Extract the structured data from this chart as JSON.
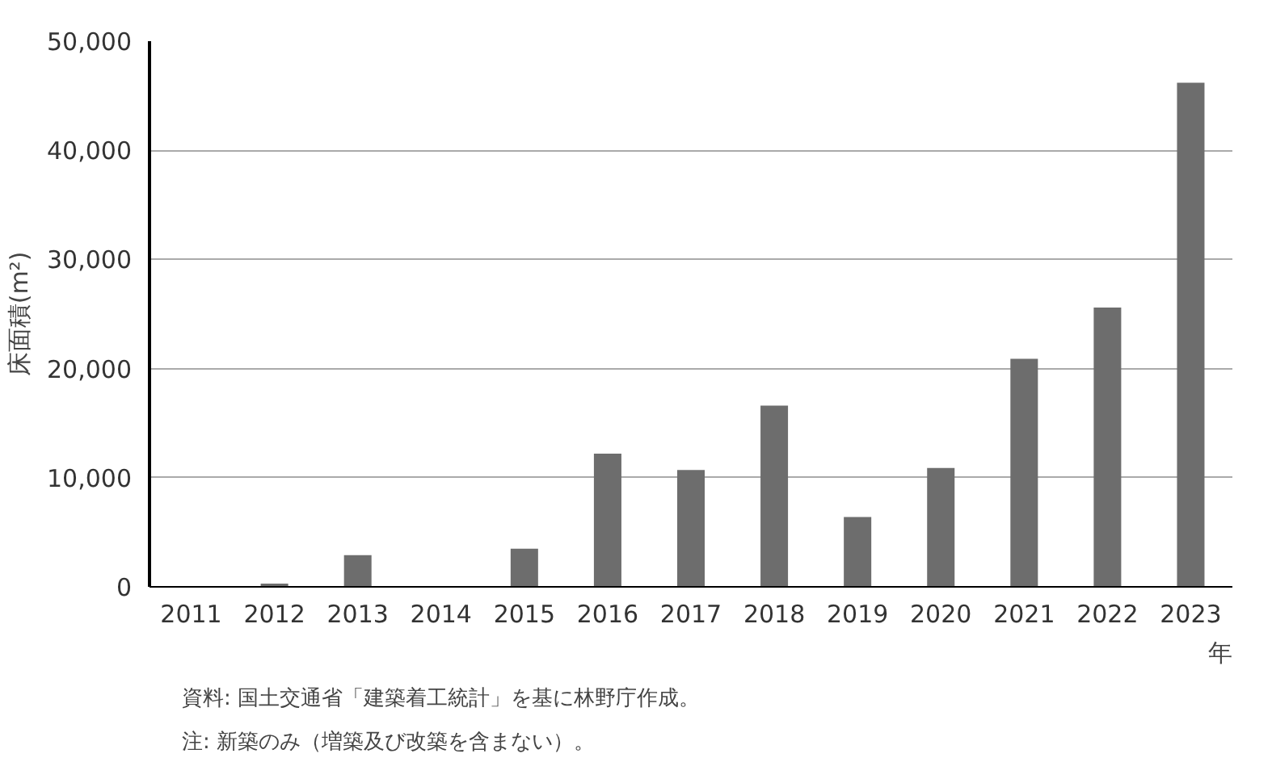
{
  "chart_data": {
    "type": "bar",
    "categories": [
      "2011",
      "2012",
      "2013",
      "2014",
      "2015",
      "2016",
      "2017",
      "2018",
      "2019",
      "2020",
      "2021",
      "2022",
      "2023"
    ],
    "values": [
      0,
      300,
      2900,
      0,
      3500,
      12200,
      10700,
      16600,
      6400,
      10900,
      20900,
      25600,
      46200
    ],
    "color": "#6d6d6d",
    "ylim": [
      0,
      50000
    ],
    "yticks": [
      {
        "value": 0,
        "label": "0"
      },
      {
        "value": 10000,
        "label": "10,000"
      },
      {
        "value": 20000,
        "label": "20,000"
      },
      {
        "value": 30000,
        "label": "30,000"
      },
      {
        "value": 40000,
        "label": "40,000"
      },
      {
        "value": 50000,
        "label": "50,000"
      }
    ],
    "grid": "y",
    "xlabel": "年",
    "ylabel": "床面積(m²)",
    "annotations": [
      "資料: 国土交通省「建築着工統計」を基に林野庁作成。",
      "注: 新築のみ（増築及び改築を含まない）。"
    ]
  }
}
